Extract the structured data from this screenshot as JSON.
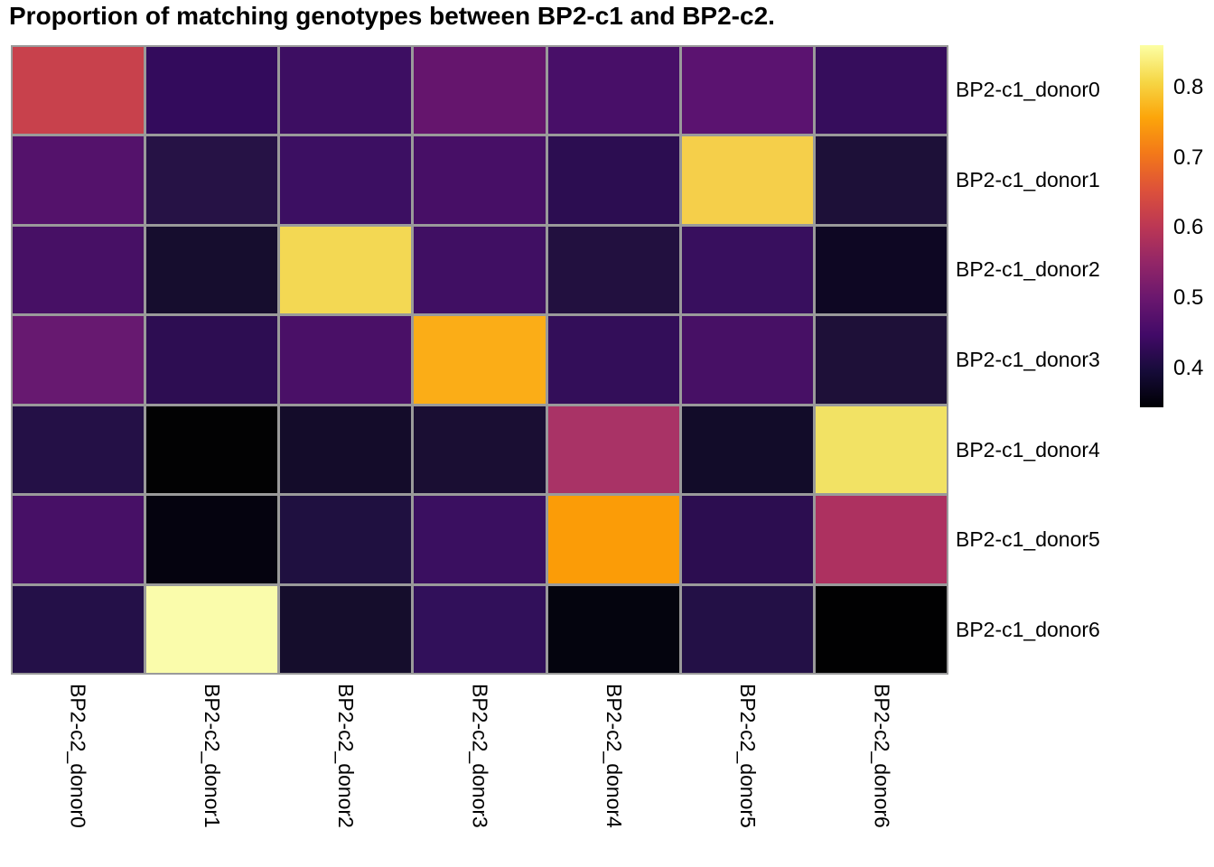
{
  "chart_data": {
    "type": "heatmap",
    "title": "Proportion of matching genotypes between BP2-c1 and BP2-c2.",
    "rows": [
      "BP2-c1_donor0",
      "BP2-c1_donor1",
      "BP2-c1_donor2",
      "BP2-c1_donor3",
      "BP2-c1_donor4",
      "BP2-c1_donor5",
      "BP2-c1_donor6"
    ],
    "columns": [
      "BP2-c2_donor0",
      "BP2-c2_donor1",
      "BP2-c2_donor2",
      "BP2-c2_donor3",
      "BP2-c2_donor4",
      "BP2-c2_donor5",
      "BP2-c2_donor6"
    ],
    "values": [
      [
        0.62,
        0.43,
        0.44,
        0.49,
        0.46,
        0.47,
        0.43
      ],
      [
        0.47,
        0.41,
        0.44,
        0.45,
        0.42,
        0.78,
        0.4
      ],
      [
        0.45,
        0.39,
        0.78,
        0.45,
        0.41,
        0.44,
        0.37
      ],
      [
        0.5,
        0.42,
        0.46,
        0.74,
        0.43,
        0.45,
        0.4
      ],
      [
        0.41,
        0.35,
        0.38,
        0.39,
        0.58,
        0.38,
        0.8
      ],
      [
        0.45,
        0.36,
        0.4,
        0.44,
        0.73,
        0.42,
        0.58
      ],
      [
        0.41,
        0.86,
        0.39,
        0.43,
        0.36,
        0.41,
        0.35
      ]
    ],
    "cell_colors": [
      [
        "#c8414c",
        "#330b5c",
        "#3d0e62",
        "#65156d",
        "#480f68",
        "#5b1370",
        "#360d5c"
      ],
      [
        "#54126b",
        "#261245",
        "#3c0f62",
        "#470f66",
        "#2c0d51",
        "#f5cf4a",
        "#1d1038"
      ],
      [
        "#471065",
        "#160d2e",
        "#f3d853",
        "#400f63",
        "#22103f",
        "#380f5e",
        "#0e0723"
      ],
      [
        "#671970",
        "#2d0d52",
        "#4a1067",
        "#fbad17",
        "#330e59",
        "#471065",
        "#1e1038"
      ],
      [
        "#241046",
        "#020203",
        "#140c2a",
        "#1a0e33",
        "#a93366",
        "#120c29",
        "#f2e264"
      ],
      [
        "#471066",
        "#05030f",
        "#1f1040",
        "#3a0f60",
        "#fb9c07",
        "#2c0d50",
        "#ad3160"
      ],
      [
        "#241048",
        "#fafcab",
        "#150d2c",
        "#31105a",
        "#04040e",
        "#231046",
        "#010102"
      ]
    ],
    "colormap": "inferno",
    "color_scale": {
      "min": 0.345,
      "max": 0.86
    },
    "colorbar_ticks": [
      "0.8",
      "0.7",
      "0.6",
      "0.5",
      "0.4"
    ],
    "colorbar_gradient": [
      "#fcffa4",
      "#f6d746",
      "#fca50a",
      "#f37819",
      "#dd513a",
      "#bc3754",
      "#932667",
      "#6a176e",
      "#420a68",
      "#160b39",
      "#000004"
    ],
    "grid_color": "#9a9a9a",
    "legend_position": "right",
    "grid": "on"
  }
}
